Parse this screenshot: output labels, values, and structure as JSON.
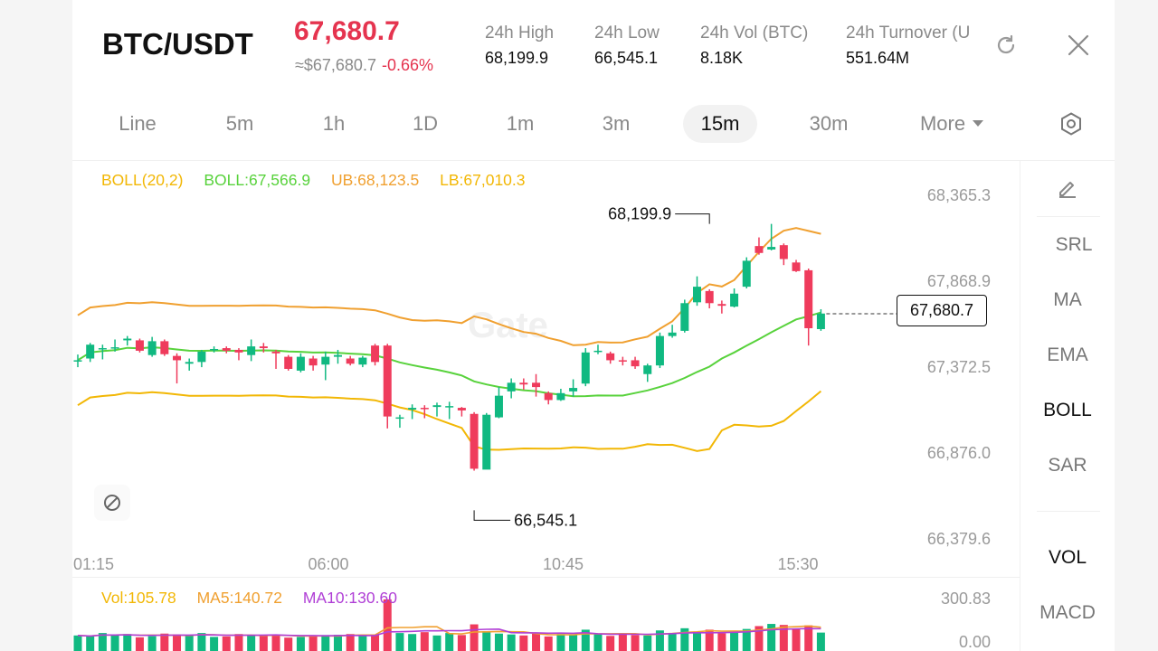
{
  "header": {
    "pair": "BTC/USDT",
    "last_price": "67,680.7",
    "fiat_price": "≈$67,680.7",
    "change_pct": "-0.66%",
    "stats": [
      {
        "label": "24h  High",
        "value": "68,199.9"
      },
      {
        "label": "24h  Low",
        "value": "66,545.1"
      },
      {
        "label": "24h  Vol (BTC)",
        "value": "8.18K"
      },
      {
        "label": "24h  Turnover (U",
        "value": "551.64M"
      }
    ]
  },
  "timeframes": [
    "Line",
    "5m",
    "1h",
    "1D",
    "1m",
    "3m",
    "15m",
    "30m",
    "More"
  ],
  "active_timeframe": "15m",
  "legend": {
    "boll": "BOLL(20,2)",
    "mid": "BOLL:67,566.9",
    "ub": "UB:68,123.5",
    "lb": "LB:67,010.3"
  },
  "vol_legend": {
    "vol": "Vol:105.78",
    "ma5": "MA5:140.72",
    "ma10": "MA10:130.60"
  },
  "indicators": [
    "SRL",
    "MA",
    "EMA",
    "BOLL",
    "SAR"
  ],
  "active_indicator": "BOLL",
  "sub_indicators": [
    "VOL",
    "MACD"
  ],
  "active_sub_indicator": "VOL",
  "colors": {
    "up": "#10b981",
    "down": "#ef3b5c",
    "mid": "#58d23c",
    "ub": "#f0a030",
    "lb": "#f2b705",
    "ma5": "#f0a030",
    "ma10": "#b03fd6"
  },
  "chart_data": {
    "type": "candlestick",
    "price_axis": [
      "68,365.3",
      "67,868.9",
      "67,372.5",
      "66,876.0",
      "66,379.6"
    ],
    "price_range": [
      66379.6,
      68365.3
    ],
    "time_axis": [
      "01:15",
      "06:00",
      "10:45",
      "15:30"
    ],
    "current_price": 67680.7,
    "current_price_label": "67,680.7",
    "high_marker": {
      "label": "68,199.9",
      "value": 68199.9,
      "index": 51
    },
    "low_marker": {
      "label": "66,545.1",
      "value": 66545.1,
      "index": 32
    },
    "volume_axis": [
      "300.83",
      "0.00"
    ],
    "volume_range": [
      0,
      300.83
    ],
    "candles": [
      [
        67412,
        67412,
        67445,
        67372
      ],
      [
        67422,
        67502,
        67512,
        67402
      ],
      [
        67477,
        67482,
        67502,
        67417
      ],
      [
        67487,
        67487,
        67532,
        67462
      ],
      [
        67527,
        67537,
        67552,
        67497
      ],
      [
        67527,
        67467,
        67537,
        67457
      ],
      [
        67442,
        67522,
        67547,
        67432
      ],
      [
        67522,
        67447,
        67532,
        67437
      ],
      [
        67437,
        67412,
        67452,
        67278
      ],
      [
        67392,
        67402,
        67422,
        67352
      ],
      [
        67402,
        67462,
        67472,
        67372
      ],
      [
        67472,
        67477,
        67492,
        67457
      ],
      [
        67482,
        67467,
        67492,
        67452
      ],
      [
        67472,
        67457,
        67482,
        67412
      ],
      [
        67442,
        67492,
        67532,
        67407
      ],
      [
        67492,
        67482,
        67512,
        67457
      ],
      [
        67462,
        67452,
        67472,
        67362
      ],
      [
        67432,
        67362,
        67442,
        67352
      ],
      [
        67352,
        67432,
        67452,
        67342
      ],
      [
        67422,
        67382,
        67437,
        67352
      ],
      [
        67387,
        67432,
        67462,
        67297
      ],
      [
        67432,
        67442,
        67472,
        67392
      ],
      [
        67422,
        67392,
        67437,
        67382
      ],
      [
        67387,
        67427,
        67437,
        67372
      ],
      [
        67497,
        67402,
        67507,
        67382
      ],
      [
        67497,
        67087,
        67507,
        67018
      ],
      [
        67077,
        67082,
        67097,
        67022
      ],
      [
        67127,
        67137,
        67157,
        67072
      ],
      [
        67137,
        67132,
        67152,
        67077
      ],
      [
        67142,
        67152,
        67167,
        67087
      ],
      [
        67147,
        67147,
        67172,
        67072
      ],
      [
        67137,
        67122,
        67142,
        67087
      ],
      [
        67102,
        66785,
        67112,
        66774
      ],
      [
        66780,
        67097,
        67107,
        66785
      ],
      [
        67082,
        67207,
        67257,
        67077
      ],
      [
        67232,
        67282,
        67307,
        67192
      ],
      [
        67282,
        67272,
        67307,
        67242
      ],
      [
        67282,
        67257,
        67332,
        67202
      ],
      [
        67222,
        67182,
        67232,
        67157
      ],
      [
        67182,
        67222,
        67247,
        67177
      ],
      [
        67232,
        67252,
        67302,
        67202
      ],
      [
        67277,
        67457,
        67482,
        67262
      ],
      [
        67462,
        67467,
        67502,
        67447
      ],
      [
        67452,
        67412,
        67462,
        67392
      ],
      [
        67412,
        67407,
        67432,
        67382
      ],
      [
        67412,
        67377,
        67432,
        67362
      ],
      [
        67332,
        67382,
        67392,
        67287
      ],
      [
        67382,
        67552,
        67572,
        67367
      ],
      [
        67552,
        67572,
        67617,
        67542
      ],
      [
        67582,
        67742,
        67762,
        67572
      ],
      [
        67747,
        67837,
        67897,
        67727
      ],
      [
        67812,
        67742,
        67822,
        67712
      ],
      [
        67737,
        67727,
        67757,
        67682
      ],
      [
        67722,
        67797,
        67827,
        67717
      ],
      [
        67837,
        67987,
        68007,
        67827
      ],
      [
        68072,
        68032,
        68122,
        68022
      ],
      [
        68052,
        68067,
        68200,
        68047
      ],
      [
        68077,
        67997,
        68087,
        67962
      ],
      [
        67977,
        67927,
        67992,
        67922
      ],
      [
        67932,
        67597,
        67942,
        67497
      ],
      [
        67592,
        67682,
        67707,
        67582
      ]
    ],
    "volumes": [
      45,
      38,
      62,
      48,
      55,
      32,
      40,
      58,
      52,
      45,
      62,
      35,
      38,
      55,
      48,
      42,
      52,
      30,
      35,
      45,
      48,
      50,
      55,
      42,
      48,
      295,
      62,
      55,
      68,
      45,
      62,
      48,
      122,
      75,
      58,
      52,
      45,
      60,
      38,
      55,
      48,
      85,
      55,
      42,
      58,
      48,
      45,
      80,
      62,
      95,
      70,
      85,
      60,
      68,
      90,
      110,
      125,
      118,
      88,
      115,
      65
    ],
    "legend_values": {
      "vol": 105.78,
      "ma5": 140.72,
      "ma10": 130.6
    }
  }
}
